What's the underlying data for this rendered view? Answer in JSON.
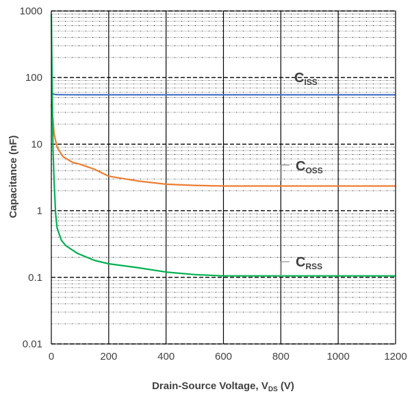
{
  "chart_data": {
    "type": "line",
    "xlabel": "Drain-Source Voltage, V",
    "xlabel_subscript": "DS",
    "xlabel_unit": " (V)",
    "ylabel": "Capacitance (nF)",
    "y_scale": "log",
    "xlim": [
      0,
      1200
    ],
    "ylim": [
      0.01,
      1000
    ],
    "x_ticks": [
      "0",
      "200",
      "400",
      "600",
      "800",
      "1000",
      "1200"
    ],
    "y_ticks": [
      "0.01",
      "0.1",
      "1",
      "10",
      "100",
      "1000"
    ],
    "grid": true,
    "series": [
      {
        "name": "C",
        "name_subscript": "ISS",
        "color": "#4472c4",
        "x": [
          0,
          5,
          10,
          20,
          50,
          100,
          200,
          400,
          600,
          800,
          1000,
          1200
        ],
        "y": [
          60,
          57,
          56,
          55.5,
          55.2,
          55,
          55,
          55,
          55,
          55,
          55,
          55
        ]
      },
      {
        "name": "C",
        "name_subscript": "OSS",
        "color": "#ed7d31",
        "x": [
          0,
          5,
          10,
          20,
          40,
          75,
          100,
          150,
          200,
          300,
          400,
          500,
          600,
          800,
          1000,
          1200
        ],
        "y": [
          40,
          25,
          14,
          9,
          6.5,
          5.3,
          5,
          4.2,
          3.3,
          2.8,
          2.5,
          2.4,
          2.35,
          2.35,
          2.35,
          2.35
        ]
      },
      {
        "name": "C",
        "name_subscript": "RSS",
        "color": "#00b050",
        "x": [
          0,
          3,
          6,
          10,
          15,
          20,
          35,
          50,
          90,
          150,
          200,
          300,
          400,
          500,
          600,
          800,
          1000,
          1200
        ],
        "y": [
          900,
          60,
          8,
          2.5,
          0.9,
          0.55,
          0.36,
          0.3,
          0.23,
          0.18,
          0.16,
          0.14,
          0.12,
          0.11,
          0.105,
          0.105,
          0.105,
          0.105
        ]
      }
    ]
  }
}
